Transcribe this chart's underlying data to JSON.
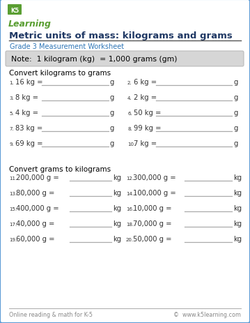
{
  "title": "Metric units of mass: kilograms and grams",
  "subtitle": "Grade 3 Measurement Worksheet",
  "note": "Note:  1 kilogram (kg)  = 1,000 grams (gm)",
  "section1": "Convert kilograms to grams",
  "section2": "Convert grams to kilograms",
  "col1_items": [
    {
      "num": "1.",
      "text": "16 kg =",
      "unit": "g"
    },
    {
      "num": "3.",
      "text": "8 kg =",
      "unit": "g"
    },
    {
      "num": "5.",
      "text": "4 kg =",
      "unit": "g"
    },
    {
      "num": "7.",
      "text": "83 kg =",
      "unit": "g"
    },
    {
      "num": "9.",
      "text": "69 kg =",
      "unit": "g"
    }
  ],
  "col2_items": [
    {
      "num": "2.",
      "text": "6 kg =",
      "unit": "g"
    },
    {
      "num": "4.",
      "text": "2 kg =",
      "unit": "g"
    },
    {
      "num": "6.",
      "text": "50 kg =",
      "unit": "g"
    },
    {
      "num": "8.",
      "text": "99 kg =",
      "unit": "g"
    },
    {
      "num": "10.",
      "text": "7 kg =",
      "unit": "g"
    }
  ],
  "col3_items": [
    {
      "num": "11.",
      "text": "200,000 g =",
      "unit": "kg"
    },
    {
      "num": "13.",
      "text": "80,000 g =",
      "unit": "kg"
    },
    {
      "num": "15.",
      "text": "400,000 g =",
      "unit": "kg"
    },
    {
      "num": "17.",
      "text": "40,000 g =",
      "unit": "kg"
    },
    {
      "num": "19.",
      "text": "60,000 g =",
      "unit": "kg"
    }
  ],
  "col4_items": [
    {
      "num": "12.",
      "text": "300,000 g =",
      "unit": "kg"
    },
    {
      "num": "14.",
      "text": "100,000 g =",
      "unit": "kg"
    },
    {
      "num": "16.",
      "text": "10,000 g =",
      "unit": "kg"
    },
    {
      "num": "18.",
      "text": "70,000 g =",
      "unit": "kg"
    },
    {
      "num": "20.",
      "text": "50,000 g =",
      "unit": "kg"
    }
  ],
  "footer_left": "Online reading & math for K-5",
  "footer_right": "©  www.k5learning.com",
  "bg_color": "#ffffff",
  "border_color": "#5b9bd5",
  "title_color": "#1f3864",
  "subtitle_color": "#2e75b6",
  "note_bg": "#d6d6d6",
  "note_text_color": "#000000",
  "section_color": "#000000",
  "item_color": "#333333",
  "line_color": "#aaaaaa",
  "footer_color": "#888888",
  "logo_green": "#5a9e32",
  "logo_blue": "#2e75b6"
}
